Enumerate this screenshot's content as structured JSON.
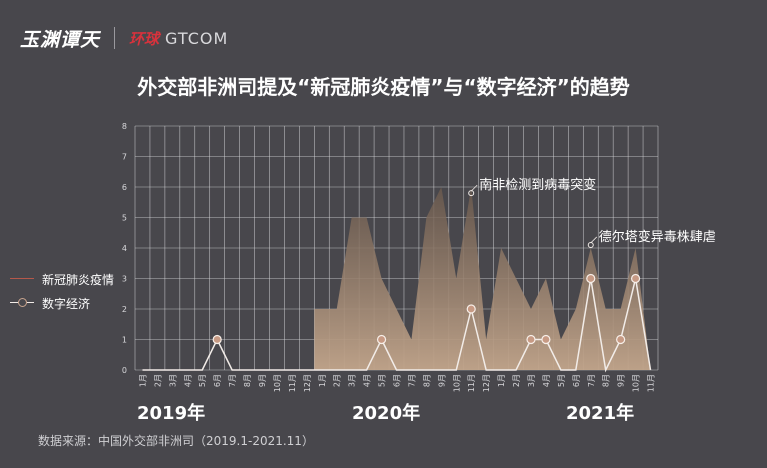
{
  "header": {
    "logo_text": "玉渊谭天",
    "partner_mark": "环球",
    "partner_text": "GTCOM"
  },
  "title": "外交部非洲司提及“新冠肺炎疫情”与“数字经济”的趋势",
  "source": "数据来源：中国外交部非洲司（2019.1-2021.11）",
  "colors": {
    "background": "#48474c",
    "covid_fill_top": "#6b5a4e",
    "covid_fill_bottom": "#c2a58b",
    "covid_line": "#b5584a",
    "digital_line": "#f2ece8",
    "marker_fill": "#c79a84",
    "grid": "#d7d7da"
  },
  "chart_data": {
    "type": "area",
    "ylim": [
      0,
      8
    ],
    "yticks": [
      0,
      1,
      2,
      3,
      4,
      5,
      6,
      7,
      8
    ],
    "year_labels": [
      "2019年",
      "2020年",
      "2021年"
    ],
    "categories": [
      "1月",
      "2月",
      "3月",
      "4月",
      "5月",
      "6月",
      "7月",
      "8月",
      "9月",
      "10月",
      "11月",
      "12月",
      "1月",
      "2月",
      "3月",
      "4月",
      "5月",
      "6月",
      "7月",
      "8月",
      "9月",
      "10月",
      "11月",
      "12月",
      "1月",
      "2月",
      "3月",
      "4月",
      "5月",
      "6月",
      "7月",
      "8月",
      "9月",
      "10月",
      "11月"
    ],
    "series": [
      {
        "name": "新冠肺炎疫情",
        "values": [
          0,
          0,
          0,
          0,
          0,
          0,
          0,
          0,
          0,
          0,
          0,
          0,
          2,
          2,
          5,
          5,
          3,
          2,
          1,
          5,
          6,
          3,
          6,
          1,
          4,
          3,
          2,
          3,
          1,
          2,
          4,
          2,
          2,
          4,
          0
        ]
      },
      {
        "name": "数字经济",
        "values": [
          0,
          0,
          0,
          0,
          0,
          1,
          0,
          0,
          0,
          0,
          0,
          0,
          0,
          0,
          0,
          0,
          1,
          0,
          0,
          0,
          0,
          0,
          2,
          0,
          0,
          0,
          1,
          1,
          0,
          0,
          3,
          0,
          1,
          3,
          0
        ]
      }
    ],
    "markers": [
      {
        "series": "数字经济",
        "indexes": [
          5,
          16,
          22,
          26,
          27,
          30,
          32,
          33
        ]
      }
    ],
    "annotations": [
      {
        "text": "南非检测到病毒突变",
        "index": 22,
        "value": 5.8
      },
      {
        "text": "德尔塔变异毒株肆虐",
        "index": 30,
        "value": 4.1
      }
    ],
    "legend_position": "left"
  }
}
